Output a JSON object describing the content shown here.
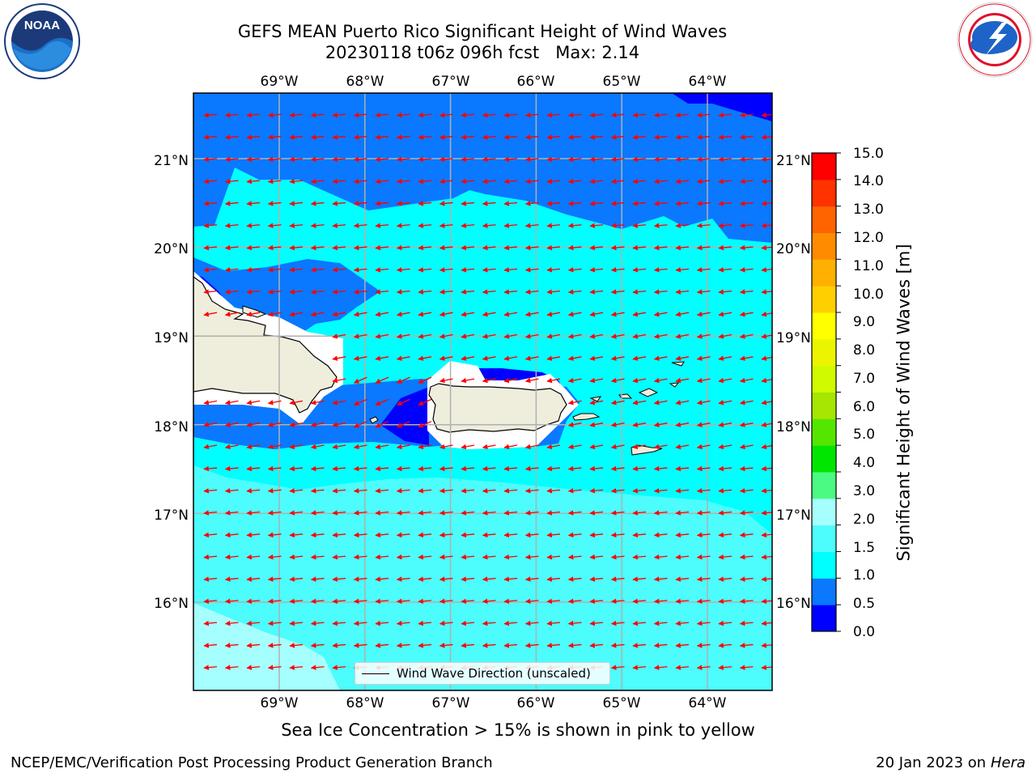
{
  "header": {
    "title_line1": "GEFS MEAN Puerto Rico Significant Height of Wind Waves",
    "title_line2": "20230118 t06z 096h fcst   Max: 2.14"
  },
  "logos": {
    "left": "NOAA",
    "right": "NATIONAL WEATHER SERVICE"
  },
  "map": {
    "lon_labels": [
      "69°W",
      "68°W",
      "67°W",
      "66°W",
      "65°W",
      "64°W"
    ],
    "lat_labels": [
      "21°N",
      "20°N",
      "19°N",
      "18°N",
      "17°N",
      "16°N"
    ],
    "lon_values": [
      -69,
      -68,
      -67,
      -66,
      -65,
      -64
    ],
    "lat_values": [
      21,
      20,
      19,
      18,
      17,
      16
    ],
    "legend_text": "Wind Wave Direction (unscaled)",
    "arrow_color": "#ff0000",
    "land_color": "#efeddc"
  },
  "colorbar": {
    "title": "Significant Height of Wind Waves [m]",
    "tick_labels": [
      "15.0",
      "14.0",
      "13.0",
      "12.0",
      "11.0",
      "10.0",
      "9.0",
      "8.0",
      "7.0",
      "6.0",
      "5.0",
      "4.0",
      "3.0",
      "2.0",
      "1.5",
      "1.0",
      "0.5",
      "0.0"
    ],
    "colors": [
      "#0000ff",
      "#0a78ff",
      "#00ffff",
      "#4dfcfc",
      "#a6ffff",
      "#4bfa82",
      "#00e600",
      "#55e600",
      "#a6e600",
      "#cffa00",
      "#ebf500",
      "#ffff00",
      "#ffd000",
      "#ffb000",
      "#ff8c00",
      "#ff6400",
      "#ff3200",
      "#ff0000"
    ]
  },
  "footer": {
    "sea_ice_note": "Sea Ice Concentration > 15% is shown in pink to yellow",
    "credit_left": "NCEP/EMC/Verification Post Processing Product Generation Branch",
    "date_text": "20 Jan 2023 on",
    "system_name": "Hera"
  }
}
